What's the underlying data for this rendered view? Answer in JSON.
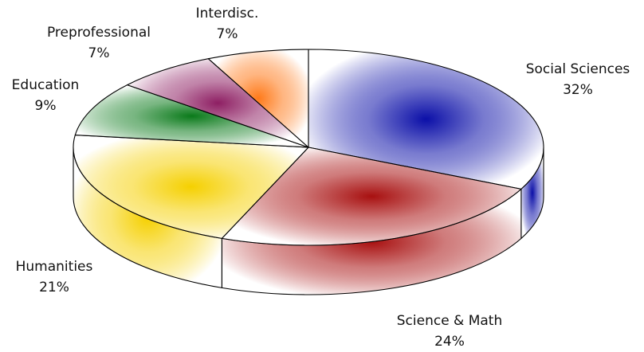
{
  "chart_data": {
    "type": "pie",
    "style": "3d",
    "title": "",
    "slices": [
      {
        "label": "Social Sciences",
        "value": 32,
        "display": "32%",
        "color": "#0b0fa8"
      },
      {
        "label": "Science & Math",
        "value": 24,
        "display": "24%",
        "color": "#a81010"
      },
      {
        "label": "Humanities",
        "value": 21,
        "display": "21%",
        "color": "#f5d000"
      },
      {
        "label": "Education",
        "value": 9,
        "display": "9%",
        "color": "#0a7a1a"
      },
      {
        "label": "Preprofessional",
        "value": 7,
        "display": "7%",
        "color": "#8e1f63"
      },
      {
        "label": "Interdisc.",
        "value": 7,
        "display": "7%",
        "color": "#ff7a1a"
      }
    ]
  }
}
